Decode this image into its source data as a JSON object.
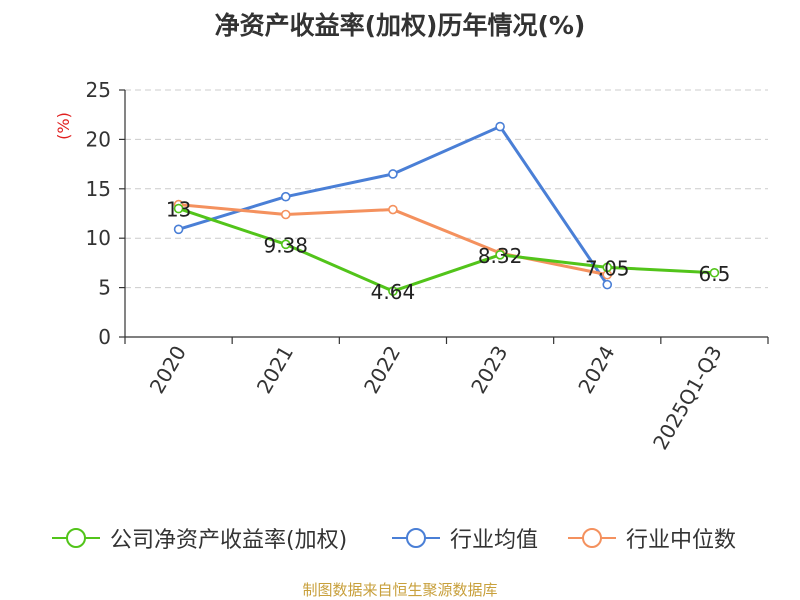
{
  "title": "净资产收益率(加权)历年情况(%)",
  "source_note": "制图数据来自恒生聚源数据库",
  "chart_data": {
    "type": "line",
    "title": "净资产收益率(加权)历年情况(%)",
    "ylabel": "(%)",
    "xlabel": "",
    "categories": [
      "2020",
      "2021",
      "2022",
      "2023",
      "2024",
      "2025Q1-Q3"
    ],
    "ylim": [
      0,
      25
    ],
    "yticks": [
      0,
      5,
      10,
      15,
      20,
      25
    ],
    "grid": true,
    "legend_position": "bottom",
    "series": [
      {
        "name": "公司净资产收益率(加权)",
        "color": "#52c41a",
        "values": [
          13,
          9.38,
          4.64,
          8.32,
          7.05,
          6.5
        ],
        "data_labels": [
          "13",
          "9.38",
          "4.64",
          "8.32",
          "7.05",
          "6.5"
        ]
      },
      {
        "name": "行业均值",
        "color": "#4a7fd6",
        "values": [
          10.9,
          14.2,
          16.5,
          21.3,
          5.3,
          null
        ],
        "data_labels": []
      },
      {
        "name": "行业中位数",
        "color": "#f4915e",
        "values": [
          13.4,
          12.4,
          12.9,
          8.5,
          6.3,
          null
        ],
        "data_labels": []
      }
    ]
  }
}
